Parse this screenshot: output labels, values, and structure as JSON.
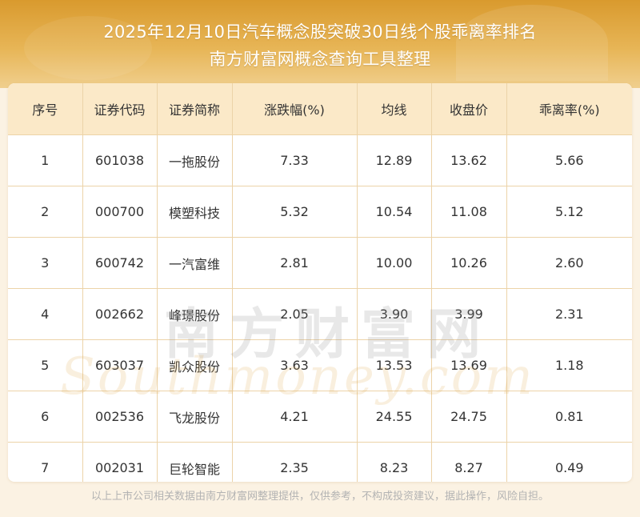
{
  "header": {
    "title_line1": "2025年12月10日汽车概念股突破30日线个股乖离率排名",
    "title_line2": "南方财富网概念查询工具整理"
  },
  "table": {
    "columns": [
      "序号",
      "证券代码",
      "证券简称",
      "涨跌幅(%)",
      "均线",
      "收盘价",
      "乖离率(%)"
    ],
    "rows": [
      [
        "1",
        "601038",
        "一拖股份",
        "7.33",
        "12.89",
        "13.62",
        "5.66"
      ],
      [
        "2",
        "000700",
        "模塑科技",
        "5.32",
        "10.54",
        "11.08",
        "5.12"
      ],
      [
        "3",
        "600742",
        "一汽富维",
        "2.81",
        "10.00",
        "10.26",
        "2.60"
      ],
      [
        "4",
        "002662",
        "峰璟股份",
        "2.05",
        "3.90",
        "3.99",
        "2.31"
      ],
      [
        "5",
        "603037",
        "凯众股份",
        "3.63",
        "13.53",
        "13.69",
        "1.18"
      ],
      [
        "6",
        "002536",
        "飞龙股份",
        "4.21",
        "24.55",
        "24.75",
        "0.81"
      ],
      [
        "7",
        "002031",
        "巨轮智能",
        "2.35",
        "8.23",
        "8.27",
        "0.49"
      ]
    ]
  },
  "watermark": {
    "chinese": "南方财富网",
    "english": "Southmoney.com"
  },
  "footnote": "以上上市公司相关数据由南方财富网整理提供，仅供参考，不构成投资建议，据此操作，风险自担。",
  "colors": {
    "header_gold": "#e0a53c",
    "table_header_bg": "#fbe9c8",
    "grid_line": "#ecd3a8",
    "page_bg": "#fbf2e3"
  }
}
